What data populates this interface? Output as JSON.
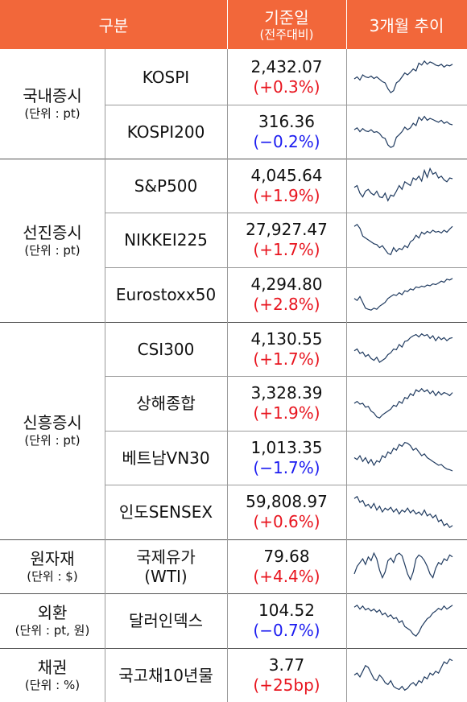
{
  "header": {
    "col1": "구분",
    "col2_line1": "기준일",
    "col2_line2": "(전주대비)",
    "col3": "3개월 추이"
  },
  "groups": [
    {
      "name": "국내증시",
      "unit": "(단위 : pt)"
    },
    {
      "name": "선진증시",
      "unit": "(단위 : pt)"
    },
    {
      "name": "신흥증시",
      "unit": "(단위 : pt)"
    },
    {
      "name": "원자재",
      "unit": "(단위 : $)"
    },
    {
      "name": "외환",
      "unit": "(단위 : pt, 원)"
    },
    {
      "name": "채권",
      "unit": "(단위 : %)"
    }
  ],
  "rows": [
    {
      "name": "KOSPI",
      "value": "2,432.07",
      "change": "(+0.3%)",
      "direction": "up",
      "trend": [
        0.45,
        0.5,
        0.42,
        0.55,
        0.5,
        0.48,
        0.52,
        0.46,
        0.5,
        0.44,
        0.38,
        0.35,
        0.2,
        0.1,
        0.15,
        0.35,
        0.4,
        0.5,
        0.6,
        0.55,
        0.62,
        0.7,
        0.65,
        0.85,
        0.8,
        0.9,
        0.82,
        0.88,
        0.85,
        0.8,
        0.78,
        0.82,
        0.75,
        0.8,
        0.78,
        0.82
      ]
    },
    {
      "name": "KOSPI200",
      "value": "316.36",
      "change": "(−0.2%)",
      "direction": "down",
      "trend": [
        0.55,
        0.6,
        0.5,
        0.58,
        0.52,
        0.5,
        0.55,
        0.48,
        0.5,
        0.45,
        0.35,
        0.32,
        0.15,
        0.08,
        0.12,
        0.35,
        0.42,
        0.5,
        0.62,
        0.55,
        0.6,
        0.72,
        0.66,
        0.88,
        0.8,
        0.9,
        0.8,
        0.85,
        0.82,
        0.78,
        0.75,
        0.8,
        0.72,
        0.76,
        0.7,
        0.68
      ]
    },
    {
      "name": "S&P500",
      "value": "4,045.64",
      "change": "(+1.9%)",
      "direction": "up",
      "trend": [
        0.45,
        0.5,
        0.3,
        0.2,
        0.35,
        0.4,
        0.3,
        0.25,
        0.35,
        0.2,
        0.18,
        0.3,
        0.1,
        0.25,
        0.22,
        0.35,
        0.5,
        0.4,
        0.6,
        0.55,
        0.5,
        0.7,
        0.65,
        0.75,
        0.62,
        0.9,
        0.72,
        0.95,
        0.8,
        0.85,
        0.7,
        0.75,
        0.65,
        0.6,
        0.7,
        0.68
      ]
    },
    {
      "name": "NIKKEI225",
      "value": "27,927.47",
      "change": "(+1.7%)",
      "direction": "up",
      "trend": [
        0.85,
        0.9,
        0.8,
        0.6,
        0.55,
        0.5,
        0.45,
        0.4,
        0.38,
        0.3,
        0.35,
        0.25,
        0.15,
        0.12,
        0.3,
        0.2,
        0.28,
        0.25,
        0.35,
        0.3,
        0.45,
        0.5,
        0.62,
        0.55,
        0.7,
        0.65,
        0.72,
        0.68,
        0.75,
        0.7,
        0.72,
        0.68,
        0.75,
        0.7,
        0.78,
        0.85
      ]
    },
    {
      "name": "Eurostoxx50",
      "value": "4,294.80",
      "change": "(+2.8%)",
      "direction": "up",
      "trend": [
        0.4,
        0.35,
        0.45,
        0.3,
        0.15,
        0.12,
        0.1,
        0.15,
        0.12,
        0.2,
        0.25,
        0.3,
        0.4,
        0.45,
        0.5,
        0.48,
        0.55,
        0.5,
        0.6,
        0.58,
        0.65,
        0.62,
        0.7,
        0.68,
        0.72,
        0.7,
        0.75,
        0.73,
        0.78,
        0.76,
        0.8,
        0.85,
        0.82,
        0.9,
        0.88,
        0.92
      ]
    },
    {
      "name": "CSI300",
      "value": "4,130.55",
      "change": "(+1.7%)",
      "direction": "up",
      "trend": [
        0.45,
        0.5,
        0.38,
        0.42,
        0.3,
        0.35,
        0.25,
        0.2,
        0.28,
        0.15,
        0.2,
        0.25,
        0.35,
        0.4,
        0.5,
        0.48,
        0.62,
        0.55,
        0.7,
        0.72,
        0.8,
        0.85,
        0.88,
        0.82,
        0.9,
        0.85,
        0.88,
        0.78,
        0.85,
        0.72,
        0.82,
        0.75,
        0.8,
        0.72,
        0.78,
        0.8
      ]
    },
    {
      "name": "상해종합",
      "value": "3,328.39",
      "change": "(+1.9%)",
      "direction": "up",
      "trend": [
        0.5,
        0.55,
        0.48,
        0.5,
        0.4,
        0.42,
        0.3,
        0.25,
        0.15,
        0.12,
        0.2,
        0.25,
        0.3,
        0.35,
        0.45,
        0.42,
        0.55,
        0.5,
        0.65,
        0.62,
        0.75,
        0.7,
        0.85,
        0.8,
        0.88,
        0.8,
        0.85,
        0.75,
        0.82,
        0.7,
        0.8,
        0.72,
        0.78,
        0.75,
        0.7,
        0.78
      ]
    },
    {
      "name": "베트남VN30",
      "value": "1,013.35",
      "change": "(−1.7%)",
      "direction": "down",
      "trend": [
        0.5,
        0.45,
        0.55,
        0.4,
        0.5,
        0.35,
        0.45,
        0.3,
        0.42,
        0.38,
        0.55,
        0.5,
        0.65,
        0.6,
        0.75,
        0.7,
        0.85,
        0.8,
        0.9,
        0.88,
        0.82,
        0.7,
        0.75,
        0.65,
        0.55,
        0.6,
        0.5,
        0.45,
        0.4,
        0.35,
        0.3,
        0.32,
        0.25,
        0.2,
        0.18,
        0.15
      ]
    },
    {
      "name": "인도SENSEX",
      "value": "59,808.97",
      "change": "(+0.6%)",
      "direction": "up",
      "trend": [
        0.85,
        0.9,
        0.75,
        0.8,
        0.65,
        0.7,
        0.6,
        0.72,
        0.55,
        0.65,
        0.5,
        0.6,
        0.55,
        0.62,
        0.5,
        0.58,
        0.45,
        0.55,
        0.5,
        0.6,
        0.48,
        0.55,
        0.45,
        0.5,
        0.42,
        0.55,
        0.4,
        0.45,
        0.35,
        0.42,
        0.25,
        0.3,
        0.15,
        0.2,
        0.1,
        0.15
      ]
    },
    {
      "name": "국제유가\n(WTI)",
      "value": "79.68",
      "change": "(+4.4%)",
      "direction": "up",
      "trend": [
        0.3,
        0.5,
        0.6,
        0.7,
        0.55,
        0.75,
        0.65,
        0.85,
        0.7,
        0.4,
        0.2,
        0.35,
        0.65,
        0.72,
        0.6,
        0.8,
        0.85,
        0.78,
        0.55,
        0.3,
        0.15,
        0.35,
        0.7,
        0.8,
        0.75,
        0.65,
        0.5,
        0.3,
        0.2,
        0.45,
        0.6,
        0.55,
        0.7,
        0.65,
        0.8,
        0.75
      ]
    },
    {
      "name": "달러인덱스",
      "value": "104.52",
      "change": "(−0.7%)",
      "direction": "down",
      "trend": [
        0.85,
        0.9,
        0.8,
        0.88,
        0.78,
        0.82,
        0.75,
        0.8,
        0.72,
        0.78,
        0.65,
        0.7,
        0.6,
        0.65,
        0.55,
        0.58,
        0.45,
        0.5,
        0.35,
        0.3,
        0.25,
        0.15,
        0.1,
        0.2,
        0.35,
        0.45,
        0.55,
        0.6,
        0.7,
        0.75,
        0.82,
        0.78,
        0.88,
        0.8,
        0.85,
        0.9
      ]
    },
    {
      "name": "국고채10년물",
      "value": "3.77",
      "change": "(+25bp)",
      "direction": "up",
      "trend": [
        0.5,
        0.55,
        0.45,
        0.6,
        0.75,
        0.7,
        0.55,
        0.4,
        0.35,
        0.5,
        0.42,
        0.3,
        0.25,
        0.35,
        0.2,
        0.15,
        0.12,
        0.2,
        0.1,
        0.15,
        0.25,
        0.3,
        0.22,
        0.35,
        0.3,
        0.45,
        0.4,
        0.55,
        0.5,
        0.6,
        0.55,
        0.7,
        0.85,
        0.8,
        0.92,
        0.88
      ]
    }
  ],
  "colors": {
    "header": "#f2673a",
    "up": "#e8141e",
    "down": "#1c1cf0",
    "line": "#1f3a5f"
  }
}
